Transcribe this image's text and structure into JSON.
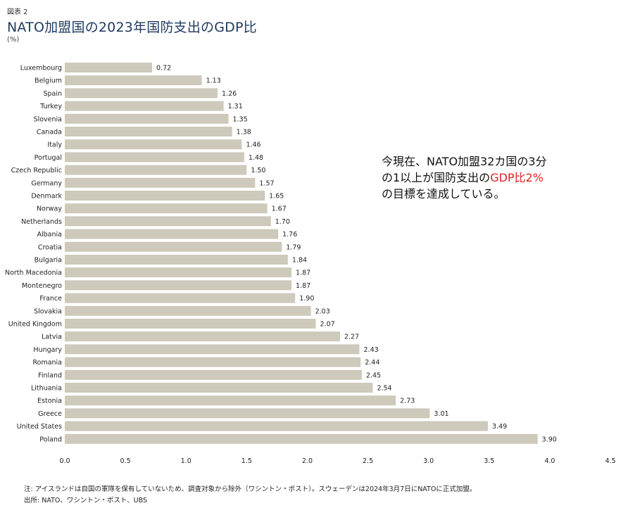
{
  "figure_label": "図表 2",
  "title": "NATO加盟国の2023年国防支出のGDP比",
  "unit": "(%)",
  "callout": {
    "line1": "今現在、NATO加盟32カ国の3分",
    "line2a": "の1以上が国防支出の",
    "line2b": "GDP比2%",
    "line3": "の目標を達成している。"
  },
  "note": "注: アイスランドは自国の軍隊を保有していないため、調査対象から除外（ワシントン・ポスト）。スウェーデンは2024年3月7日にNATOに正式加盟。",
  "source": "出所: NATO、ワシントン・ポスト、UBS",
  "colors": {
    "bar": "#cdc9bb",
    "title": "#1f3a5f",
    "highlight": "#e02020"
  },
  "chart_data": {
    "type": "bar",
    "orientation": "horizontal",
    "categories": [
      "Luxembourg",
      "Belgium",
      "Spain",
      "Turkey",
      "Slovenia",
      "Canada",
      "Italy",
      "Portugal",
      "Czech Republic",
      "Germany",
      "Denmark",
      "Norway",
      "Netherlands",
      "Albania",
      "Croatia",
      "Bulgaria",
      "North Macedonia",
      "Montenegro",
      "France",
      "Slovakia",
      "United Kingdom",
      "Latvia",
      "Hungary",
      "Romania",
      "Finland",
      "Lithuania",
      "Estonia",
      "Greece",
      "United States",
      "Poland"
    ],
    "values": [
      0.72,
      1.13,
      1.26,
      1.31,
      1.35,
      1.38,
      1.46,
      1.48,
      1.5,
      1.57,
      1.65,
      1.67,
      1.7,
      1.76,
      1.79,
      1.84,
      1.87,
      1.87,
      1.9,
      2.03,
      2.07,
      2.27,
      2.43,
      2.44,
      2.45,
      2.54,
      2.73,
      3.01,
      3.49,
      3.9
    ],
    "value_labels": [
      "0.72",
      "1.13",
      "1.26",
      "1.31",
      "1.35",
      "1.38",
      "1.46",
      "1.48",
      "1.50",
      "1.57",
      "1.65",
      "1.67",
      "1.70",
      "1.76",
      "1.79",
      "1.84",
      "1.87",
      "1.87",
      "1.90",
      "2.03",
      "2.07",
      "2.27",
      "2.43",
      "2.44",
      "2.45",
      "2.54",
      "2.73",
      "3.01",
      "3.49",
      "3.90"
    ],
    "xlim": [
      0,
      4.5
    ],
    "xticks": [
      "0.0",
      "0.5",
      "1.0",
      "1.5",
      "2.0",
      "2.5",
      "3.0",
      "3.5",
      "4.0",
      "4.5"
    ],
    "grid": false,
    "legend": false
  }
}
